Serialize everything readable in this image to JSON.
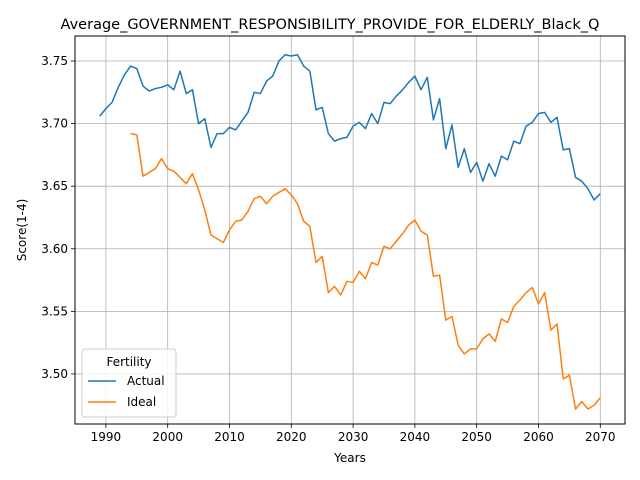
{
  "chart_data": {
    "type": "line",
    "title": "Average_GOVERNMENT_RESPONSIBILITY_PROVIDE_FOR_ELDERLY_Black_Q",
    "xlabel": "Years",
    "ylabel": "Score(1-4)",
    "xlim": [
      1985,
      2074
    ],
    "ylim": [
      3.46,
      3.77
    ],
    "xticks": [
      1990,
      2000,
      2010,
      2020,
      2030,
      2040,
      2050,
      2060,
      2070
    ],
    "yticks": [
      3.5,
      3.55,
      3.6,
      3.65,
      3.7,
      3.75
    ],
    "grid": true,
    "legend": {
      "title": "Fertility",
      "position": "lower-left"
    },
    "colors": {
      "Actual": "#1f77b4",
      "Ideal": "#ff7f0e"
    },
    "series": [
      {
        "name": "Actual",
        "x": [
          1989,
          1990,
          1991,
          1992,
          1993,
          1994,
          1995,
          1996,
          1997,
          1998,
          1999,
          2000,
          2001,
          2002,
          2003,
          2004,
          2005,
          2006,
          2007,
          2008,
          2009,
          2010,
          2011,
          2012,
          2013,
          2014,
          2015,
          2016,
          2017,
          2018,
          2019,
          2020,
          2021,
          2022,
          2023,
          2024,
          2025,
          2026,
          2027,
          2028,
          2029,
          2030,
          2031,
          2032,
          2033,
          2034,
          2035,
          2036,
          2037,
          2038,
          2039,
          2040,
          2041,
          2042,
          2043,
          2044,
          2045,
          2046,
          2047,
          2048,
          2049,
          2050,
          2051,
          2052,
          2053,
          2054,
          2055,
          2056,
          2057,
          2058,
          2059,
          2060,
          2061,
          2062,
          2063,
          2064,
          2065,
          2066,
          2067,
          2068,
          2069,
          2070
        ],
        "values": [
          3.706,
          3.712,
          3.717,
          3.729,
          3.739,
          3.746,
          3.744,
          3.73,
          3.726,
          3.728,
          3.729,
          3.731,
          3.727,
          3.742,
          3.724,
          3.727,
          3.7,
          3.704,
          3.681,
          3.692,
          3.692,
          3.697,
          3.695,
          3.702,
          3.709,
          3.725,
          3.724,
          3.734,
          3.738,
          3.75,
          3.755,
          3.754,
          3.755,
          3.746,
          3.742,
          3.711,
          3.713,
          3.692,
          3.686,
          3.688,
          3.689,
          3.698,
          3.701,
          3.696,
          3.708,
          3.7,
          3.717,
          3.716,
          3.722,
          3.727,
          3.733,
          3.738,
          3.727,
          3.737,
          3.703,
          3.72,
          3.68,
          3.699,
          3.665,
          3.68,
          3.661,
          3.669,
          3.654,
          3.668,
          3.658,
          3.674,
          3.671,
          3.686,
          3.684,
          3.698,
          3.701,
          3.708,
          3.709,
          3.701,
          3.705,
          3.679,
          3.68,
          3.657,
          3.654,
          3.648,
          3.639,
          3.644
        ]
      },
      {
        "name": "Ideal",
        "x": [
          1994,
          1995,
          1996,
          1997,
          1998,
          1999,
          2000,
          2001,
          2002,
          2003,
          2004,
          2005,
          2006,
          2007,
          2008,
          2009,
          2010,
          2011,
          2012,
          2013,
          2014,
          2015,
          2016,
          2017,
          2018,
          2019,
          2020,
          2021,
          2022,
          2023,
          2024,
          2025,
          2026,
          2027,
          2028,
          2029,
          2030,
          2031,
          2032,
          2033,
          2034,
          2035,
          2036,
          2037,
          2038,
          2039,
          2040,
          2041,
          2042,
          2043,
          2044,
          2045,
          2046,
          2047,
          2048,
          2049,
          2050,
          2051,
          2052,
          2053,
          2054,
          2055,
          2056,
          2057,
          2058,
          2059,
          2060,
          2061,
          2062,
          2063,
          2064,
          2065,
          2066,
          2067,
          2068,
          2069,
          2070
        ],
        "values": [
          3.692,
          3.691,
          3.658,
          3.661,
          3.664,
          3.672,
          3.664,
          3.662,
          3.657,
          3.652,
          3.66,
          3.647,
          3.631,
          3.611,
          3.608,
          3.605,
          3.615,
          3.622,
          3.623,
          3.63,
          3.64,
          3.642,
          3.636,
          3.642,
          3.645,
          3.648,
          3.643,
          3.636,
          3.622,
          3.618,
          3.589,
          3.594,
          3.565,
          3.57,
          3.563,
          3.574,
          3.573,
          3.582,
          3.576,
          3.589,
          3.587,
          3.602,
          3.6,
          3.606,
          3.612,
          3.619,
          3.623,
          3.614,
          3.611,
          3.578,
          3.579,
          3.543,
          3.546,
          3.523,
          3.516,
          3.52,
          3.52,
          3.528,
          3.532,
          3.526,
          3.544,
          3.541,
          3.554,
          3.559,
          3.565,
          3.569,
          3.556,
          3.565,
          3.535,
          3.54,
          3.496,
          3.499,
          3.472,
          3.478,
          3.472,
          3.475,
          3.481
        ]
      }
    ]
  }
}
